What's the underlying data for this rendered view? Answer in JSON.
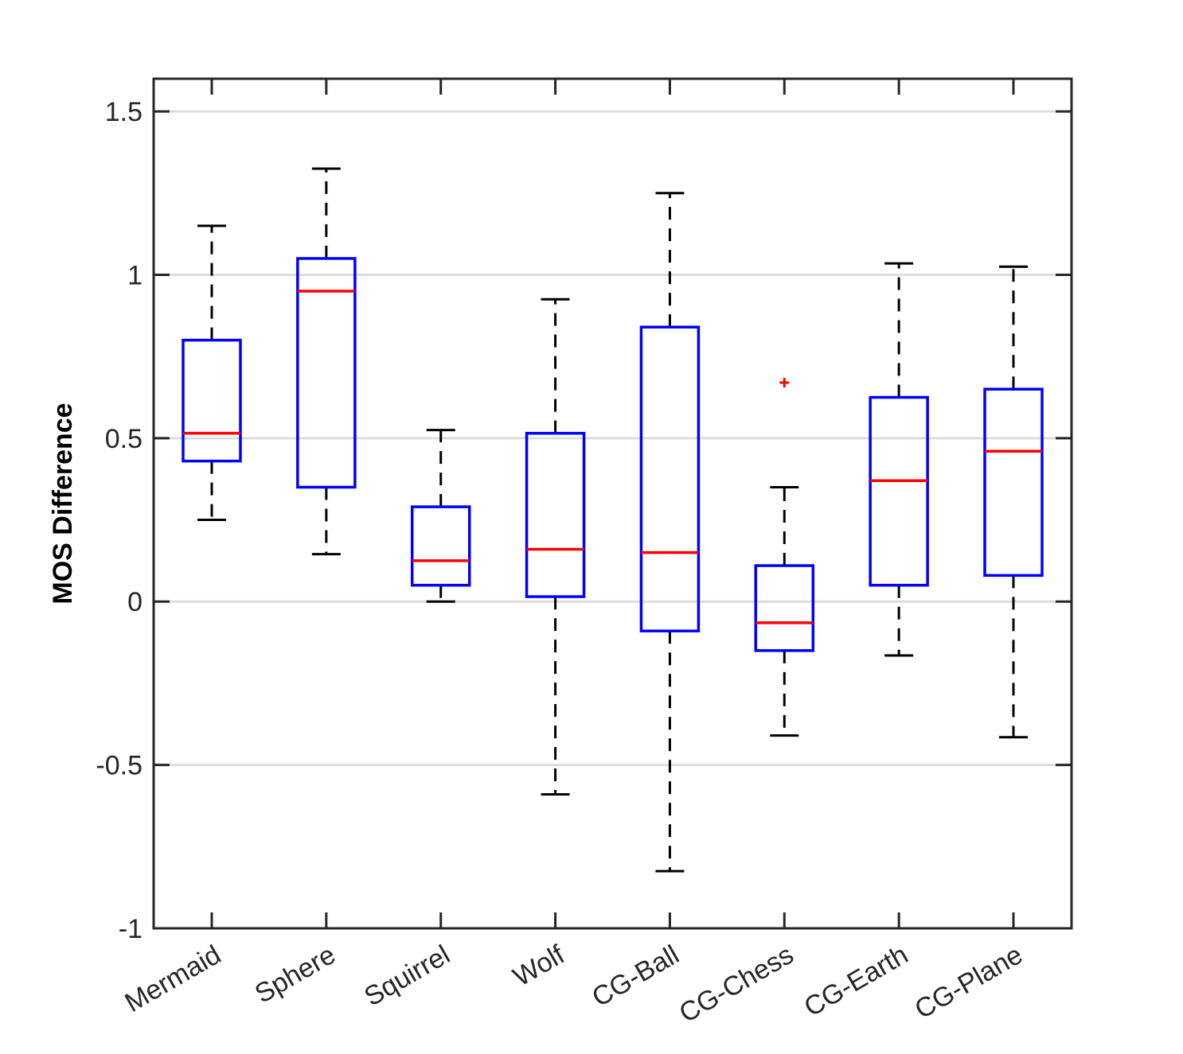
{
  "chart_data": {
    "type": "box",
    "title": "",
    "xlabel": "",
    "ylabel": "MOS Difference",
    "ylim": [
      -1,
      1.6
    ],
    "yticks": [
      -1,
      -0.5,
      0,
      0.5,
      1,
      1.5
    ],
    "ytick_labels": [
      "-1",
      "-0.5",
      "0",
      "0.5",
      "1",
      "1.5"
    ],
    "grid": "horizontal",
    "categories": [
      "Mermaid",
      "Sphere",
      "Squirrel",
      "Wolf",
      "CG-Ball",
      "CG-Chess",
      "CG-Earth",
      "CG-Plane"
    ],
    "boxes": [
      {
        "label": "Mermaid",
        "whisker_low": 0.25,
        "q1": 0.43,
        "median": 0.515,
        "q3": 0.8,
        "whisker_high": 1.15,
        "outliers": []
      },
      {
        "label": "Sphere",
        "whisker_low": 0.145,
        "q1": 0.35,
        "median": 0.95,
        "q3": 1.05,
        "whisker_high": 1.325,
        "outliers": []
      },
      {
        "label": "Squirrel",
        "whisker_low": 0.0,
        "q1": 0.05,
        "median": 0.125,
        "q3": 0.29,
        "whisker_high": 0.525,
        "outliers": []
      },
      {
        "label": "Wolf",
        "whisker_low": -0.59,
        "q1": 0.015,
        "median": 0.16,
        "q3": 0.515,
        "whisker_high": 0.925,
        "outliers": []
      },
      {
        "label": "CG-Ball",
        "whisker_low": -0.825,
        "q1": -0.09,
        "median": 0.15,
        "q3": 0.84,
        "whisker_high": 1.25,
        "outliers": []
      },
      {
        "label": "CG-Chess",
        "whisker_low": -0.41,
        "q1": -0.15,
        "median": -0.065,
        "q3": 0.11,
        "whisker_high": 0.35,
        "outliers": [
          0.67
        ]
      },
      {
        "label": "CG-Earth",
        "whisker_low": -0.165,
        "q1": 0.05,
        "median": 0.37,
        "q3": 0.625,
        "whisker_high": 1.035,
        "outliers": []
      },
      {
        "label": "CG-Plane",
        "whisker_low": -0.415,
        "q1": 0.08,
        "median": 0.46,
        "q3": 0.65,
        "whisker_high": 1.025,
        "outliers": []
      }
    ],
    "colors": {
      "box": "#0000ff",
      "median": "#ff0000",
      "whisker": "#000000",
      "outlier": "#ff0000",
      "grid": "#dcdcdc",
      "axis": "#262626"
    }
  }
}
